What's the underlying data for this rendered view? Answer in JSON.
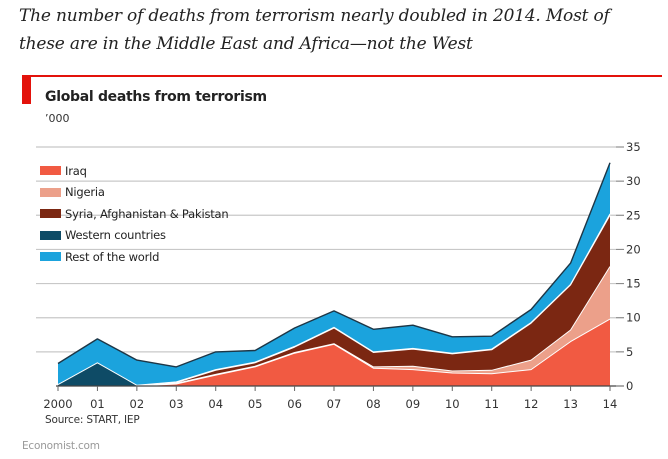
{
  "headline": "The number of deaths from terrorism nearly doubled in 2014. Most of these are in the Middle East and Africa—not the West",
  "source": "Source: START, IEP",
  "brand": "Economist.com",
  "chart_data": {
    "type": "area",
    "stacked": true,
    "title": "Global deaths from terrorism",
    "unit": "’000",
    "xlabel": "",
    "ylabel": "",
    "x": [
      2000,
      2001,
      2002,
      2003,
      2004,
      2005,
      2006,
      2007,
      2008,
      2009,
      2010,
      2011,
      2012,
      2013,
      2014
    ],
    "x_tick_labels": [
      "2000",
      "01",
      "02",
      "03",
      "04",
      "05",
      "06",
      "07",
      "08",
      "09",
      "10",
      "11",
      "12",
      "13",
      "14"
    ],
    "ylim": [
      0,
      35
    ],
    "y_ticks": [
      0,
      5,
      10,
      15,
      20,
      25,
      30,
      35
    ],
    "y_axis_side": "right",
    "grid": true,
    "legend_position": "top-left",
    "series": [
      {
        "name": "Iraq",
        "color": "#f15a42",
        "values": [
          0,
          0,
          0,
          0.3,
          1.6,
          2.8,
          4.8,
          6.1,
          2.6,
          2.4,
          1.9,
          1.8,
          2.4,
          6.5,
          9.8
        ]
      },
      {
        "name": "Nigeria",
        "color": "#eca08a",
        "values": [
          0,
          0,
          0,
          0.1,
          0.1,
          0.1,
          0.1,
          0.1,
          0.2,
          0.5,
          0.3,
          0.5,
          1.4,
          1.7,
          7.7
        ]
      },
      {
        "name": "Syria, Afghanistan & Pakistan",
        "color": "#7b2712",
        "values": [
          0,
          0,
          0,
          0.1,
          0.6,
          0.5,
          0.8,
          2.3,
          2.1,
          2.5,
          2.5,
          3.0,
          5.4,
          6.6,
          7.5
        ]
      },
      {
        "name": "Western countries",
        "color": "#0e4b66",
        "values": [
          0.2,
          3.4,
          0.1,
          0.1,
          0.1,
          0.1,
          0.1,
          0.1,
          0.1,
          0.1,
          0.1,
          0.1,
          0.1,
          0.1,
          0.2
        ]
      },
      {
        "name": "Rest of the world",
        "color": "#1ba3dd",
        "values": [
          3.1,
          3.5,
          3.7,
          2.2,
          2.6,
          1.7,
          2.7,
          2.4,
          3.3,
          3.4,
          2.4,
          1.9,
          1.9,
          3.1,
          7.5
        ]
      }
    ],
    "totals": [
      3.3,
      6.9,
      3.8,
      2.8,
      5.0,
      5.2,
      8.5,
      11.0,
      8.3,
      8.9,
      7.2,
      7.3,
      11.2,
      18.0,
      32.7
    ]
  }
}
